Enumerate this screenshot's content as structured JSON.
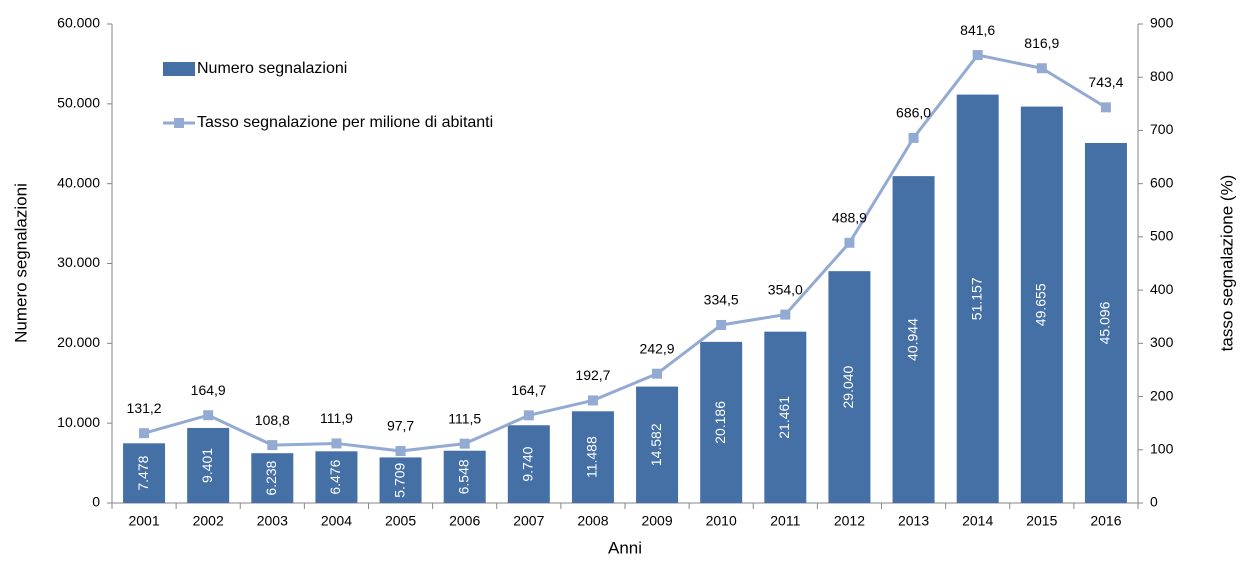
{
  "chart_data": {
    "type": "bar",
    "categories": [
      "2001",
      "2002",
      "2003",
      "2004",
      "2005",
      "2006",
      "2007",
      "2008",
      "2009",
      "2010",
      "2011",
      "2012",
      "2013",
      "2014",
      "2015",
      "2016"
    ],
    "series": [
      {
        "name": "Numero segnalazioni",
        "type": "bar",
        "color": "#4470a6",
        "values": [
          7478,
          9401,
          6238,
          6476,
          5709,
          6548,
          9740,
          11488,
          14582,
          20186,
          21461,
          29040,
          40944,
          51157,
          49655,
          45096
        ],
        "value_labels": [
          "7.478",
          "9.401",
          "6.238",
          "6.476",
          "5.709",
          "6.548",
          "9.740",
          "11.488",
          "14.582",
          "20.186",
          "21.461",
          "29.040",
          "40.944",
          "51.157",
          "49.655",
          "45.096"
        ]
      },
      {
        "name": "Tasso segnalazione per milione di abitanti",
        "type": "line",
        "axis": "y2",
        "color": "#93aad3",
        "values": [
          131.2,
          164.9,
          108.8,
          111.9,
          97.7,
          111.5,
          164.7,
          192.7,
          242.9,
          334.5,
          354.0,
          488.9,
          686.0,
          841.6,
          816.9,
          743.4
        ],
        "value_labels": [
          "131,2",
          "164,9",
          "108,8",
          "111,9",
          "97,7",
          "111,5",
          "164,7",
          "192,7",
          "242,9",
          "334,5",
          "354,0",
          "488,9",
          "686,0",
          "841,6",
          "816,9",
          "743,4"
        ]
      }
    ],
    "xlabel": "Anni",
    "ylabel": "Numero segnalazioni",
    "y2label": "tasso segnalazione (%)",
    "ylim": [
      0,
      60000
    ],
    "yticks": [
      0,
      {
        "value": 10000,
        "label": "10.000"
      },
      {
        "value": 20000,
        "label": "20.000"
      },
      {
        "value": 30000,
        "label": "30.000"
      },
      {
        "value": 40000,
        "label": "40.000"
      },
      {
        "value": 50000,
        "label": "50.000"
      },
      {
        "value": 60000,
        "label": "60.000"
      }
    ],
    "y2lim": [
      0,
      900
    ],
    "y2ticks": [
      0,
      100,
      200,
      300,
      400,
      500,
      600,
      700,
      800,
      900
    ],
    "grid": false,
    "legend": "upper left"
  }
}
